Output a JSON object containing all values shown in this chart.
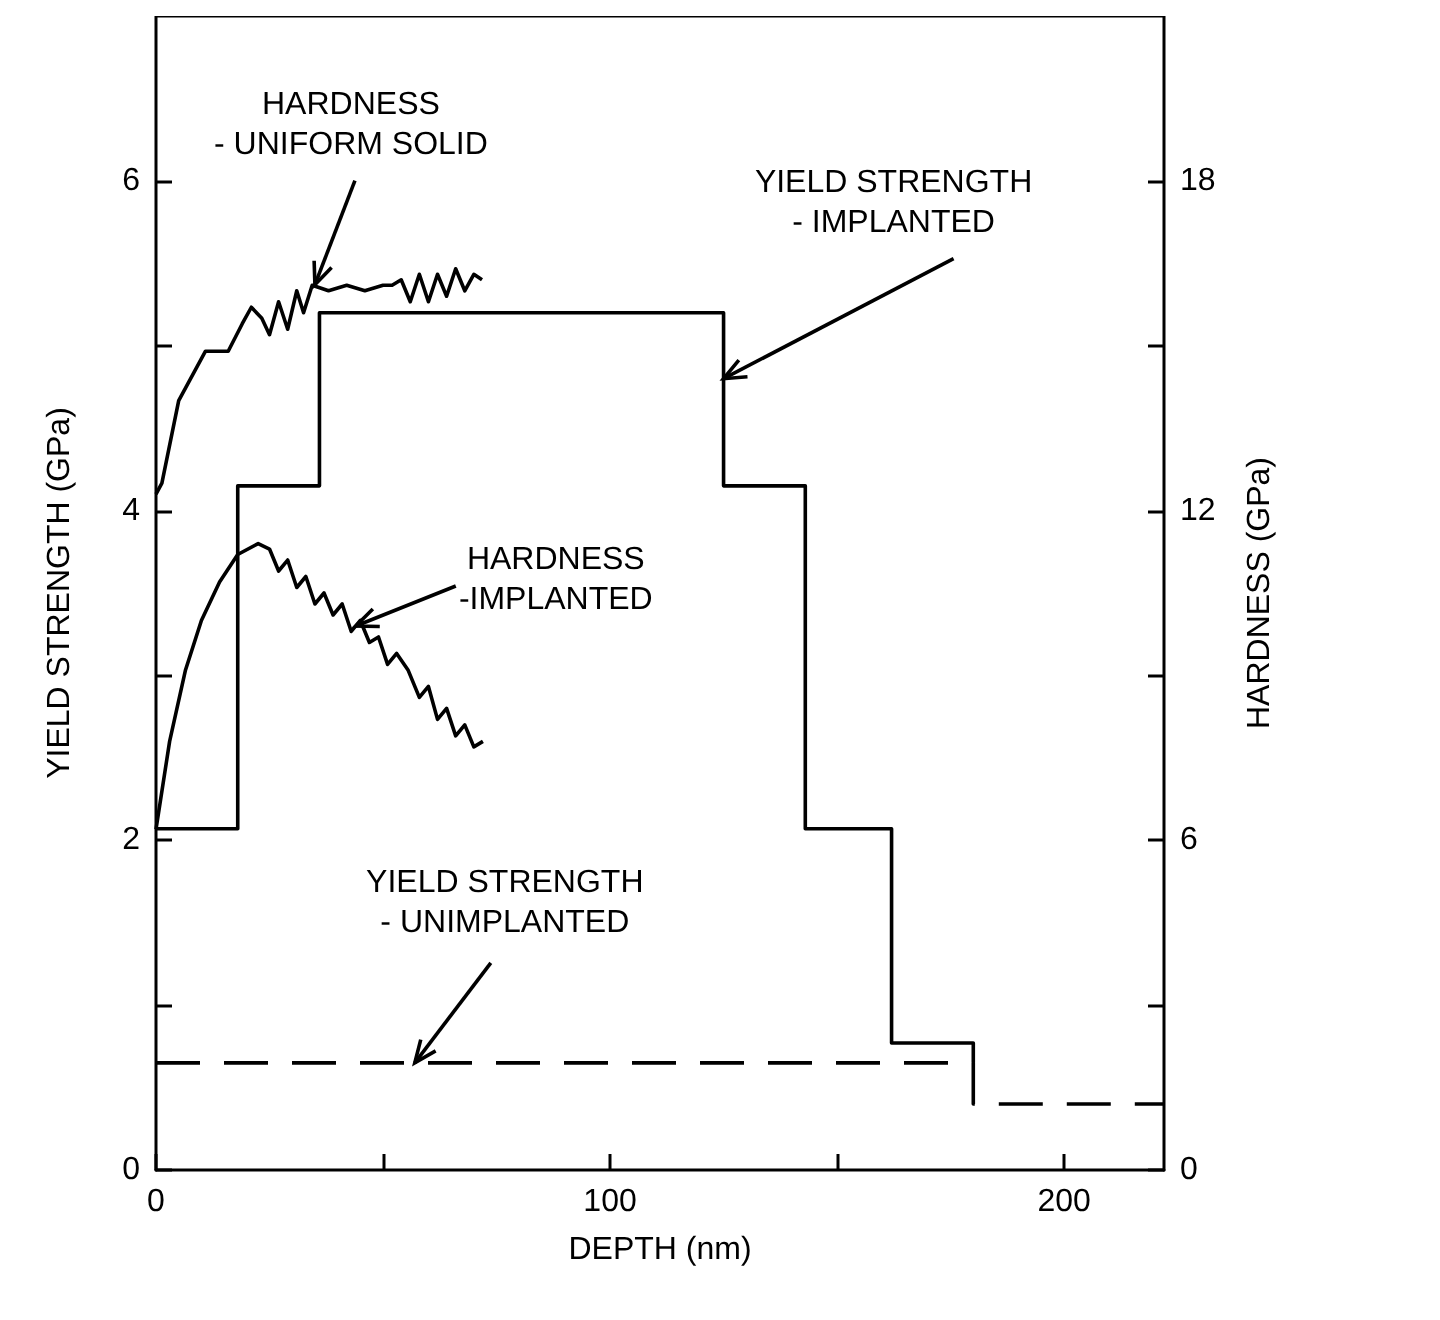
{
  "chart_data": {
    "type": "line",
    "xlabel": "DEPTH (nm)",
    "ylabel": "YIELD STRENGTH (GPa)",
    "y2label": "HARDNESS (GPa)",
    "xlim": [
      0,
      222
    ],
    "xticks": [
      0,
      {
        "value": 50,
        "label": null
      },
      100,
      {
        "value": 150,
        "label": null
      },
      200
    ],
    "ylim": [
      0,
      7
    ],
    "yticks": [
      0,
      {
        "value": 1,
        "label": null
      },
      2,
      {
        "value": 3,
        "label": null
      },
      4,
      {
        "value": 5,
        "label": null
      },
      6
    ],
    "y2lim": [
      0,
      21
    ],
    "y2ticks": [
      0,
      {
        "value": 3,
        "label": null
      },
      6,
      {
        "value": 9,
        "label": null
      },
      12,
      {
        "value": 15,
        "label": null
      },
      18
    ],
    "grid": false,
    "marker": "none",
    "series": [
      {
        "color": "#000000",
        "line_style": "solid",
        "x": [
          0,
          18,
          18,
          36,
          36,
          125,
          125,
          143,
          143,
          162,
          162,
          180,
          180
        ],
        "values": [
          2.07,
          2.07,
          4.15,
          4.15,
          5.2,
          5.2,
          4.15,
          4.15,
          2.07,
          2.07,
          0.77,
          0.77,
          0.65
        ]
      },
      {
        "color": "#000000",
        "line_style": "dashed",
        "x": [
          0,
          180,
          180,
          222
        ],
        "values": [
          0.65,
          0.65,
          0.4,
          0.4
        ]
      },
      {
        "color": "#000000",
        "line_style": "solid",
        "axis": "y2",
        "x": [
          0,
          1.3,
          5,
          10.9,
          15.9,
          19,
          21,
          23.3,
          25,
          27,
          29,
          31,
          32.5,
          34.4,
          38,
          42,
          46,
          50,
          52,
          54,
          56,
          58,
          60,
          62,
          64,
          66,
          68,
          70,
          71.8
        ],
        "values": [
          12.3,
          12.5,
          14,
          14.9,
          14.9,
          15.4,
          15.7,
          15.5,
          15.2,
          15.8,
          15.3,
          16.0,
          15.6,
          16.1,
          16.0,
          16.1,
          16.0,
          16.1,
          16.1,
          16.2,
          15.8,
          16.3,
          15.8,
          16.3,
          15.9,
          16.4,
          16.0,
          16.3,
          16.2
        ]
      },
      {
        "color": "#000000",
        "line_style": "solid",
        "axis": "y2",
        "x": [
          0,
          3,
          6.5,
          10,
          14,
          18,
          22.5,
          25,
          27,
          29,
          31,
          33,
          35,
          37,
          39,
          41,
          43,
          45,
          47,
          49,
          51,
          53,
          55.5,
          58,
          60,
          62,
          64,
          66,
          68,
          70,
          72
        ],
        "values": [
          6.2,
          7.8,
          9.1,
          10.0,
          10.7,
          11.2,
          11.4,
          11.3,
          10.9,
          11.1,
          10.6,
          10.8,
          10.3,
          10.5,
          10.1,
          10.3,
          9.8,
          10.0,
          9.6,
          9.7,
          9.2,
          9.4,
          9.1,
          8.6,
          8.8,
          8.2,
          8.4,
          7.9,
          8.1,
          7.7,
          7.8
        ]
      }
    ],
    "annotations": [
      {
        "text": "HARDNESS\n- UNIFORM SOLID",
        "x": 35,
        "y": 5.37
      },
      {
        "text": "YIELD STRENGTH\n- IMPLANTED",
        "x": 125,
        "y": 4.8
      },
      {
        "text": "HARDNESS\n-IMPLANTED",
        "x": 44,
        "y": 3.3
      },
      {
        "text": "YIELD STRENGTH\n- UNIMPLANTED",
        "x": 57,
        "y": 0.65
      }
    ]
  }
}
